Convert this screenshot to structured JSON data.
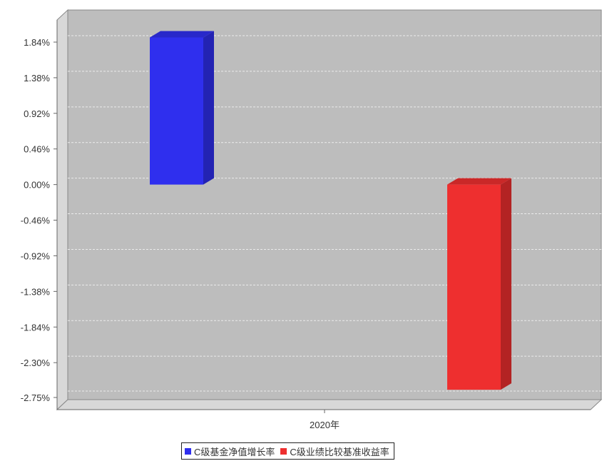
{
  "chart_data": {
    "type": "bar",
    "categories": [
      "2020年"
    ],
    "series": [
      {
        "name": "C级基金净值增长率",
        "values": [
          1.9
        ],
        "color": "#2f2fee"
      },
      {
        "name": "C级业绩比较基准收益率",
        "values": [
          -2.65
        ],
        "color": "#ee2f2f"
      }
    ],
    "y_ticks": [
      "1.84%",
      "1.38%",
      "0.92%",
      "0.46%",
      "0.00%",
      "-0.46%",
      "-0.92%",
      "-1.38%",
      "-1.84%",
      "-2.30%",
      "-2.75%"
    ],
    "ylim": [
      -2.75,
      1.84
    ],
    "grid": true,
    "legend_position": "bottom-center",
    "title": ""
  }
}
